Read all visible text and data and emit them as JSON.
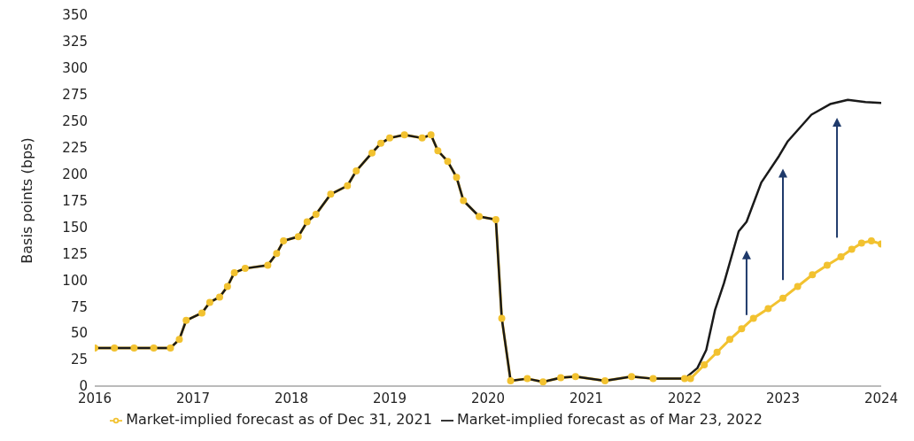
{
  "chart_data": {
    "type": "line",
    "ylabel": "Basis points (bps)",
    "xlim": [
      2016,
      2024
    ],
    "xticks": [
      2016,
      2017,
      2018,
      2019,
      2020,
      2021,
      2022,
      2023,
      2024
    ],
    "ylim": [
      0,
      350
    ],
    "yticks": [
      0,
      25,
      50,
      75,
      100,
      125,
      150,
      175,
      200,
      225,
      250,
      275,
      300,
      325,
      350
    ],
    "grid": false,
    "legend": "bottom",
    "series": [
      {
        "name": "Market-implied forecast as of Dec 31, 2021",
        "color": "#f2c230",
        "marker": "circle",
        "x": [
          2016,
          2016.2,
          2016.4,
          2016.6,
          2016.77,
          2016.86,
          2016.93,
          2017.09,
          2017.17,
          2017.27,
          2017.35,
          2017.42,
          2017.53,
          2017.76,
          2017.85,
          2017.92,
          2018.07,
          2018.16,
          2018.25,
          2018.4,
          2018.57,
          2018.66,
          2018.82,
          2018.91,
          2019,
          2019.15,
          2019.33,
          2019.42,
          2019.49,
          2019.59,
          2019.68,
          2019.75,
          2019.91,
          2020.08,
          2020.14,
          2020.23,
          2020.4,
          2020.56,
          2020.74,
          2020.89,
          2021.19,
          2021.46,
          2021.68,
          2022,
          2022.06,
          2022.2,
          2022.33,
          2022.46,
          2022.58,
          2022.7,
          2022.85,
          2023,
          2023.15,
          2023.3,
          2023.45,
          2023.59,
          2023.7,
          2023.8,
          2023.9,
          2024
        ],
        "values": [
          36,
          36,
          36,
          36,
          36,
          44,
          62,
          69,
          79,
          84,
          94,
          107,
          111,
          114,
          125,
          137,
          141,
          155,
          162,
          181,
          189,
          203,
          220,
          229,
          234,
          237,
          234,
          237,
          222,
          212,
          197,
          175,
          160,
          157,
          64,
          5,
          7,
          4,
          8,
          9,
          5,
          9,
          7,
          7,
          7,
          20,
          32,
          44,
          54,
          64,
          73,
          83,
          94,
          105,
          114,
          122,
          129,
          135,
          137,
          134
        ]
      },
      {
        "name": "Market-implied forecast as of Mar 23, 2022",
        "color": "#1a1a1a",
        "marker": "none",
        "x": [
          2016,
          2016.77,
          2016.86,
          2016.93,
          2017.09,
          2017.17,
          2017.27,
          2017.35,
          2017.42,
          2017.53,
          2017.76,
          2017.85,
          2017.92,
          2018.07,
          2018.16,
          2018.25,
          2018.4,
          2018.57,
          2018.66,
          2018.82,
          2018.91,
          2019,
          2019.15,
          2019.33,
          2019.42,
          2019.49,
          2019.59,
          2019.68,
          2019.75,
          2019.91,
          2020.08,
          2020.14,
          2020.23,
          2020.4,
          2020.56,
          2020.74,
          2020.89,
          2021.19,
          2021.46,
          2021.68,
          2022,
          2022.13,
          2022.22,
          2022.31,
          2022.4,
          2022.55,
          2022.63,
          2022.78,
          2022.96,
          2023.05,
          2023.29,
          2023.48,
          2023.66,
          2023.84,
          2024
        ],
        "values": [
          36,
          36,
          44,
          62,
          69,
          79,
          84,
          94,
          107,
          111,
          114,
          125,
          137,
          141,
          155,
          162,
          181,
          189,
          203,
          220,
          229,
          234,
          237,
          234,
          237,
          222,
          212,
          197,
          175,
          160,
          157,
          64,
          5,
          7,
          4,
          8,
          9,
          5,
          9,
          7,
          7,
          17,
          34,
          72,
          97,
          146,
          155,
          192,
          217,
          231,
          256,
          266,
          270,
          268,
          267
        ]
      }
    ]
  }
}
